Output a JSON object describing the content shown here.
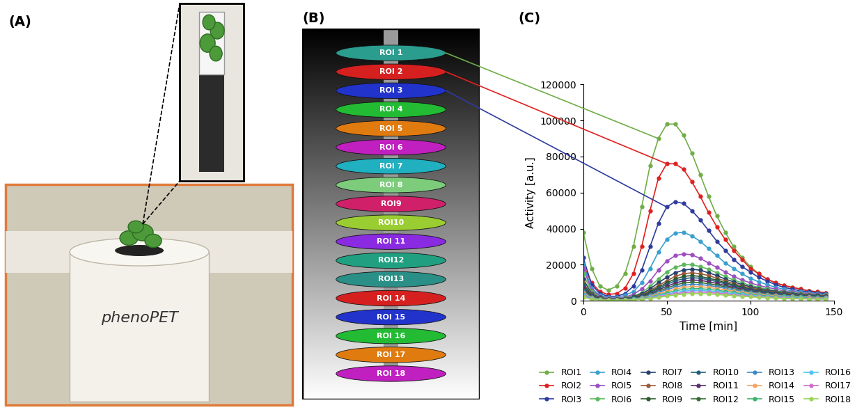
{
  "panels": {
    "A": {
      "label": "(A)",
      "device_text": "phenoPET"
    },
    "B": {
      "label": "(B)",
      "roi_labels": [
        "ROI 1",
        "ROI 2",
        "ROI 3",
        "ROI 4",
        "ROI 5",
        "ROI 6",
        "ROI 7",
        "ROI 8",
        "ROI9",
        "ROI10",
        "ROI 11",
        "ROI12",
        "ROI13",
        "ROI 14",
        "ROI 15",
        "ROI 16",
        "ROI 17",
        "ROI 18"
      ],
      "colors": [
        "#2a9d8f",
        "#d62020",
        "#2233cc",
        "#22bb33",
        "#e07b10",
        "#c020c0",
        "#20b0c0",
        "#7ccc7c",
        "#d0206a",
        "#9acd32",
        "#8a2be2",
        "#20a080",
        "#2a8f86",
        "#d62020",
        "#2233cc",
        "#22bb33",
        "#e07b10",
        "#c020c0"
      ]
    },
    "C": {
      "label": "(C)"
    }
  },
  "chart_data": {
    "type": "line",
    "x_label": "Time [min]",
    "y_label": "Activity [a.u.]",
    "x": [
      0,
      5,
      10,
      15,
      20,
      25,
      30,
      35,
      40,
      45,
      50,
      55,
      60,
      65,
      70,
      75,
      80,
      85,
      90,
      95,
      100,
      105,
      110,
      115,
      120,
      125,
      130,
      135,
      140,
      145
    ],
    "xlim": [
      0,
      150
    ],
    "xticks": [
      0,
      50,
      100,
      150
    ],
    "ylim": [
      0,
      120000
    ],
    "yticks": [
      0,
      20000,
      40000,
      60000,
      80000,
      100000,
      120000
    ],
    "grid": false,
    "legend": "lower center",
    "marker": "o",
    "line_style": "solid",
    "series": [
      {
        "name": "ROI1",
        "color": "#70ad47",
        "values": [
          38000,
          18000,
          8000,
          6000,
          8000,
          15000,
          30000,
          52000,
          75000,
          90000,
          98000,
          98000,
          92000,
          82000,
          70000,
          58000,
          47000,
          38000,
          30000,
          24000,
          19000,
          15000,
          12000,
          10000,
          8500,
          7500,
          6500,
          5500,
          5000,
          4500
        ]
      },
      {
        "name": "ROI2",
        "color": "#e02020",
        "values": [
          20000,
          10000,
          5000,
          3500,
          4000,
          7000,
          15000,
          30000,
          50000,
          68000,
          76000,
          76000,
          73000,
          66000,
          58000,
          49000,
          41000,
          34000,
          28000,
          23000,
          18000,
          15000,
          12000,
          10000,
          8500,
          7500,
          6500,
          5500,
          5000,
          4500
        ]
      },
      {
        "name": "ROI3",
        "color": "#2e3b9e",
        "values": [
          24000,
          9000,
          4000,
          2500,
          2500,
          4000,
          8000,
          17000,
          30000,
          43000,
          52000,
          55000,
          54000,
          50000,
          45000,
          39000,
          33000,
          28000,
          23000,
          19000,
          16000,
          13000,
          11000,
          9000,
          7500,
          6500,
          5500,
          5000,
          4500,
          4000
        ]
      },
      {
        "name": "ROI4",
        "color": "#3a9fd0",
        "values": [
          20000,
          7000,
          3000,
          2000,
          2000,
          3000,
          5000,
          10000,
          18000,
          27000,
          34000,
          37500,
          38000,
          36000,
          33000,
          29000,
          25000,
          21000,
          18000,
          15000,
          12500,
          10500,
          9000,
          7500,
          6500,
          5500,
          5000,
          4500,
          4000,
          3500
        ]
      },
      {
        "name": "ROI5",
        "color": "#9b4fc0",
        "values": [
          18000,
          6000,
          2500,
          1500,
          1500,
          2000,
          3500,
          6500,
          11000,
          17000,
          22000,
          25000,
          26000,
          25500,
          23500,
          21000,
          18500,
          16000,
          13500,
          11500,
          10000,
          8500,
          7500,
          6500,
          5500,
          5000,
          4500,
          4000,
          3500,
          3200
        ]
      },
      {
        "name": "ROI6",
        "color": "#5cb85c",
        "values": [
          15000,
          5000,
          2000,
          1200,
          1200,
          1600,
          2500,
          4500,
          8000,
          12000,
          16000,
          18500,
          20000,
          20000,
          19000,
          17500,
          15500,
          13500,
          11500,
          10000,
          8500,
          7500,
          6500,
          5500,
          5000,
          4500,
          4000,
          3500,
          3200,
          3000
        ]
      },
      {
        "name": "ROI7",
        "color": "#25406e",
        "values": [
          12000,
          4000,
          1800,
          1000,
          1000,
          1400,
          2200,
          3800,
          6500,
          10000,
          13000,
          15500,
          17000,
          17500,
          17000,
          15500,
          14000,
          12000,
          10500,
          9000,
          7800,
          6800,
          6000,
          5200,
          4600,
          4100,
          3700,
          3300,
          3000,
          2800
        ]
      },
      {
        "name": "ROI8",
        "color": "#9c5a3c",
        "values": [
          10000,
          3500,
          1500,
          900,
          900,
          1200,
          2000,
          3300,
          5500,
          8500,
          11000,
          13500,
          15000,
          15500,
          15000,
          14000,
          12500,
          11000,
          9500,
          8200,
          7200,
          6200,
          5500,
          4800,
          4300,
          3800,
          3400,
          3100,
          2800,
          2600
        ]
      },
      {
        "name": "ROI9",
        "color": "#2d5a2d",
        "values": [
          9000,
          3000,
          1300,
          800,
          800,
          1100,
          1800,
          3000,
          5000,
          7500,
          10000,
          12000,
          13500,
          14000,
          13500,
          12500,
          11500,
          10000,
          8800,
          7600,
          6600,
          5800,
          5100,
          4500,
          4000,
          3600,
          3200,
          2900,
          2700,
          2500
        ]
      },
      {
        "name": "ROI10",
        "color": "#1f5f7a",
        "values": [
          8000,
          2700,
          1200,
          700,
          700,
          1000,
          1600,
          2700,
          4500,
          6800,
          9000,
          11000,
          12200,
          12800,
          12500,
          11700,
          10600,
          9400,
          8200,
          7100,
          6200,
          5400,
          4800,
          4200,
          3800,
          3400,
          3000,
          2800,
          2600,
          2400
        ]
      },
      {
        "name": "ROI11",
        "color": "#5b2c6f",
        "values": [
          7000,
          2400,
          1100,
          650,
          650,
          900,
          1400,
          2400,
          4000,
          6000,
          8000,
          9800,
          11000,
          11500,
          11300,
          10600,
          9600,
          8500,
          7500,
          6500,
          5700,
          5000,
          4400,
          3900,
          3500,
          3100,
          2800,
          2600,
          2400,
          2200
        ]
      },
      {
        "name": "ROI12",
        "color": "#3a6b35",
        "values": [
          6000,
          2100,
          1000,
          600,
          600,
          800,
          1200,
          2100,
          3500,
          5300,
          7000,
          8700,
          9800,
          10300,
          10100,
          9500,
          8700,
          7700,
          6800,
          5900,
          5200,
          4600,
          4000,
          3600,
          3200,
          2900,
          2600,
          2400,
          2200,
          2000
        ]
      },
      {
        "name": "ROI13",
        "color": "#3f88c5",
        "values": [
          5000,
          1800,
          900,
          550,
          550,
          700,
          1100,
          1800,
          3000,
          4600,
          6100,
          7600,
          8600,
          9100,
          9000,
          8500,
          7800,
          6900,
          6100,
          5300,
          4700,
          4100,
          3600,
          3200,
          2900,
          2600,
          2400,
          2200,
          2000,
          1800
        ]
      },
      {
        "name": "ROI14",
        "color": "#f4a460",
        "values": [
          4200,
          1500,
          800,
          500,
          500,
          600,
          900,
          1500,
          2500,
          3900,
          5200,
          6500,
          7400,
          7900,
          7800,
          7400,
          6800,
          6000,
          5300,
          4700,
          4100,
          3600,
          3200,
          2800,
          2500,
          2300,
          2100,
          1900,
          1700,
          1600
        ]
      },
      {
        "name": "ROI15",
        "color": "#3cb371",
        "values": [
          3500,
          1300,
          700,
          450,
          450,
          550,
          800,
          1300,
          2100,
          3300,
          4400,
          5500,
          6300,
          6700,
          6700,
          6300,
          5800,
          5200,
          4600,
          4000,
          3500,
          3100,
          2700,
          2400,
          2200,
          2000,
          1800,
          1600,
          1500,
          1400
        ]
      },
      {
        "name": "ROI16",
        "color": "#4fc3f7",
        "values": [
          3000,
          1100,
          600,
          400,
          400,
          500,
          700,
          1100,
          1800,
          2800,
          3700,
          4600,
          5300,
          5700,
          5700,
          5400,
          5000,
          4400,
          3900,
          3400,
          3000,
          2600,
          2300,
          2100,
          1900,
          1700,
          1500,
          1400,
          1300,
          1200
        ]
      },
      {
        "name": "ROI17",
        "color": "#d070d0",
        "values": [
          2500,
          900,
          500,
          350,
          350,
          400,
          600,
          900,
          1500,
          2300,
          3100,
          3900,
          4500,
          4800,
          4800,
          4600,
          4200,
          3800,
          3300,
          2900,
          2600,
          2300,
          2000,
          1800,
          1600,
          1400,
          1300,
          1200,
          1100,
          1000
        ]
      },
      {
        "name": "ROI18",
        "color": "#9bd35a",
        "values": [
          2000,
          800,
          450,
          300,
          300,
          350,
          500,
          800,
          1300,
          1900,
          2600,
          3200,
          3700,
          4000,
          4000,
          3800,
          3500,
          3100,
          2800,
          2500,
          2200,
          1900,
          1700,
          1500,
          1300,
          1200,
          1100,
          1000,
          900,
          850
        ]
      }
    ]
  }
}
